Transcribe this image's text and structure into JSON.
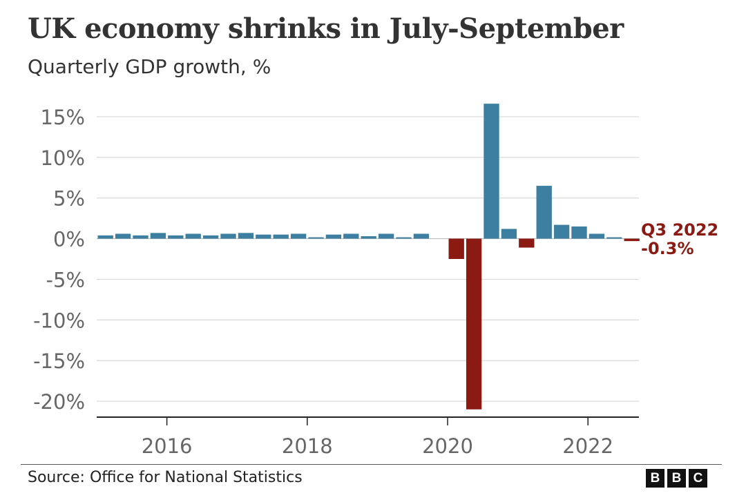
{
  "header": {
    "title": "UK economy shrinks in July-September",
    "subtitle": "Quarterly GDP growth, %"
  },
  "footer": {
    "source": "Source: Office for National Statistics",
    "logo_letters": [
      "B",
      "B",
      "C"
    ]
  },
  "colors": {
    "positive": "#3d7fa0",
    "negative": "#8b1a12",
    "annotation": "#8b1a12",
    "grid": "#d9d9d9",
    "axis": "#222222",
    "tick_text": "#666666"
  },
  "chart_data": {
    "type": "bar",
    "title": "UK economy shrinks in July-September",
    "subtitle": "Quarterly GDP growth, %",
    "xlabel": "",
    "ylabel": "",
    "ylim": [
      -22,
      17
    ],
    "xlim": [
      2015.0,
      2022.75
    ],
    "yticks": [
      15,
      10,
      5,
      0,
      -5,
      -10,
      -15,
      -20
    ],
    "ytick_labels": [
      "15%",
      "10%",
      "5%",
      "0%",
      "-5%",
      "-10%",
      "-15%",
      "-20%"
    ],
    "xticks": [
      2016,
      2018,
      2020,
      2022
    ],
    "xtick_labels": [
      "2016",
      "2018",
      "2020",
      "2022"
    ],
    "grid": true,
    "categories": [
      "Q1 2015",
      "Q2 2015",
      "Q3 2015",
      "Q4 2015",
      "Q1 2016",
      "Q2 2016",
      "Q3 2016",
      "Q4 2016",
      "Q1 2017",
      "Q2 2017",
      "Q3 2017",
      "Q4 2017",
      "Q1 2018",
      "Q2 2018",
      "Q3 2018",
      "Q4 2018",
      "Q1 2019",
      "Q2 2019",
      "Q3 2019",
      "Q4 2019",
      "Q1 2020",
      "Q2 2020",
      "Q3 2020",
      "Q4 2020",
      "Q1 2021",
      "Q2 2021",
      "Q3 2021",
      "Q4 2021",
      "Q1 2022",
      "Q2 2022",
      "Q3 2022"
    ],
    "values": [
      0.4,
      0.6,
      0.4,
      0.7,
      0.4,
      0.6,
      0.4,
      0.6,
      0.7,
      0.5,
      0.5,
      0.6,
      0.1,
      0.5,
      0.6,
      0.3,
      0.6,
      0.1,
      0.6,
      0.0,
      -2.5,
      -21.0,
      16.6,
      1.2,
      -1.1,
      6.5,
      1.7,
      1.5,
      0.6,
      0.1,
      -0.3
    ],
    "annotations": [
      {
        "category": "Q3 2022",
        "lines": [
          "Q3 2022",
          "-0.3%"
        ]
      }
    ]
  }
}
